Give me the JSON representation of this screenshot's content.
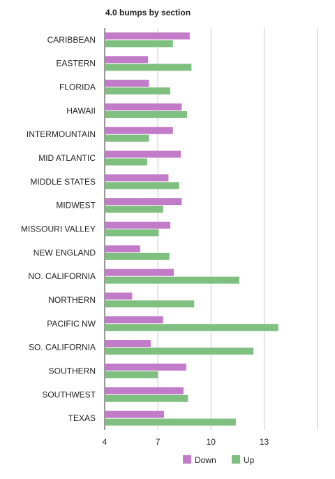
{
  "chart_data": {
    "type": "bar",
    "orientation": "horizontal",
    "title": "4.0 bumps by section",
    "xlabel": "",
    "ylabel": "",
    "xlim": [
      4,
      17
    ],
    "x_ticks": [
      4,
      7,
      10,
      13
    ],
    "grid": true,
    "legend_position": "bottom",
    "categories": [
      "CARIBBEAN",
      "EASTERN",
      "FLORIDA",
      "HAWAII",
      "INTERMOUNTAIN",
      "MID ATLANTIC",
      "MIDDLE STATES",
      "MIDWEST",
      "MISSOURI VALLEY",
      "NEW ENGLAND",
      "NO. CALIFORNIA",
      "NORTHERN",
      "PACIFIC NW",
      "SO. CALIFORNIA",
      "SOUTHERN",
      "SOUTHWEST",
      "TEXAS"
    ],
    "series": [
      {
        "name": "Down",
        "color": "#c27bc8",
        "values": [
          8.8,
          6.45,
          6.5,
          8.35,
          7.85,
          8.3,
          7.6,
          8.35,
          7.7,
          6.0,
          7.9,
          5.55,
          7.3,
          6.6,
          8.6,
          8.45,
          7.35
        ]
      },
      {
        "name": "Up",
        "color": "#7fbf7f",
        "values": [
          7.85,
          8.9,
          7.7,
          8.65,
          6.5,
          6.4,
          8.2,
          7.3,
          7.05,
          7.65,
          11.6,
          9.05,
          13.8,
          12.4,
          7.0,
          8.7,
          11.4
        ]
      }
    ]
  }
}
